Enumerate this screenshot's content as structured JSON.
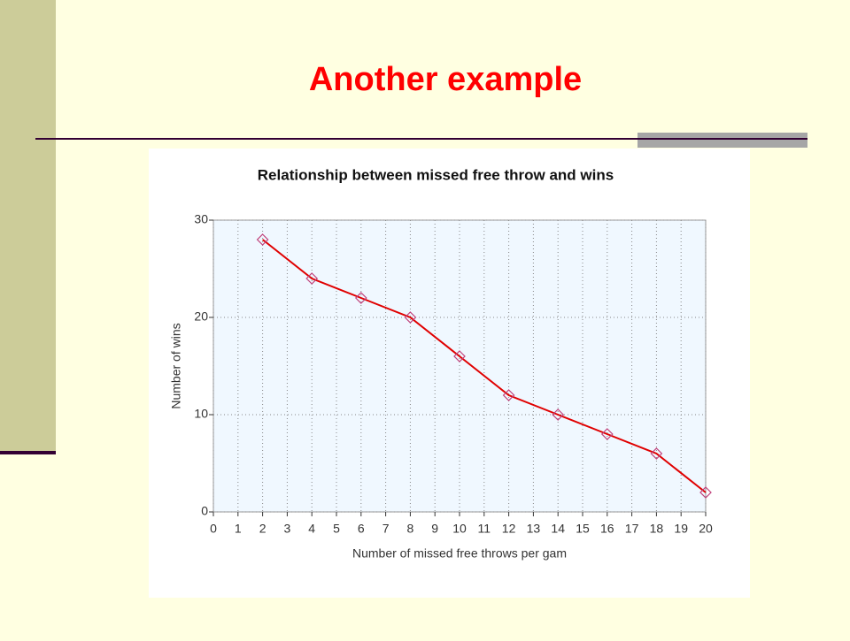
{
  "slide": {
    "title": "Another example"
  },
  "chart_data": {
    "type": "line",
    "title": "Relationship between missed free throw and wins",
    "x_label": "Number of missed free throws per gam",
    "y_label": "Number of wins",
    "x": [
      2,
      4,
      6,
      8,
      10,
      12,
      14,
      16,
      18,
      20
    ],
    "values": [
      28,
      24,
      22,
      20,
      16,
      12,
      10,
      8,
      6,
      2
    ],
    "color": "#e00000",
    "marker_color": "#c0407a",
    "xlim": [
      0,
      20
    ],
    "xticks": [
      0,
      1,
      2,
      3,
      4,
      5,
      6,
      7,
      8,
      9,
      10,
      11,
      12,
      13,
      14,
      15,
      16,
      17,
      18,
      19,
      20
    ],
    "ylim": [
      0,
      30
    ],
    "yticks": [
      0,
      10,
      20,
      30
    ],
    "grid": true
  }
}
